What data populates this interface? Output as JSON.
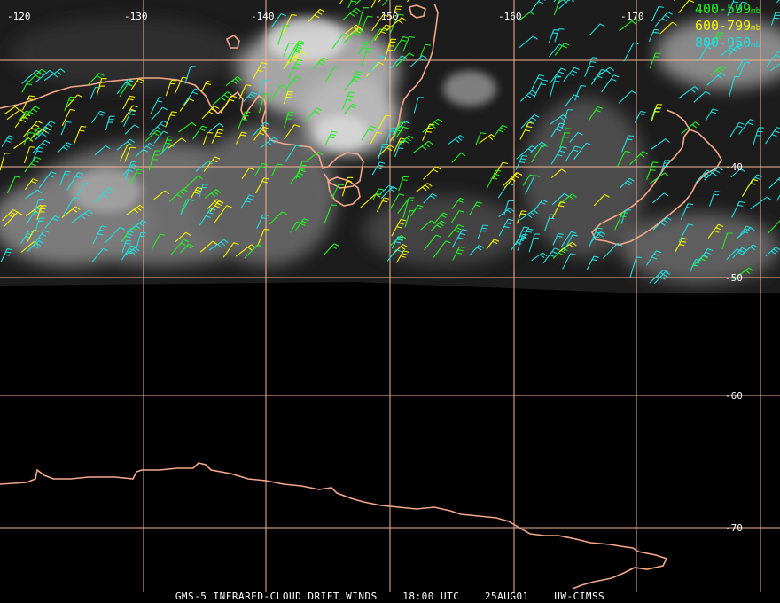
{
  "map": {
    "longitude_labels": [
      "-120",
      "-130",
      "-140",
      "-150",
      "-160",
      "-170"
    ],
    "latitude_labels": [
      "-40",
      "-50",
      "-60",
      "-70"
    ],
    "grid_color": "#f4b38f",
    "coastline_color": "#f4a789",
    "cloud_color": "#9a9a9a"
  },
  "legend": [
    {
      "range": "400-599",
      "unit": "mb",
      "color": "#22ee22"
    },
    {
      "range": "600-799",
      "unit": "mb",
      "color": "#f4f400"
    },
    {
      "range": "800-950",
      "unit": "mb",
      "color": "#22dddd"
    }
  ],
  "caption": {
    "product": "GMS-5 INFRARED-CLOUD DRIFT WINDS",
    "time": "18:00 UTC",
    "date": "25AUG01",
    "source": "UW-CIMSS"
  }
}
